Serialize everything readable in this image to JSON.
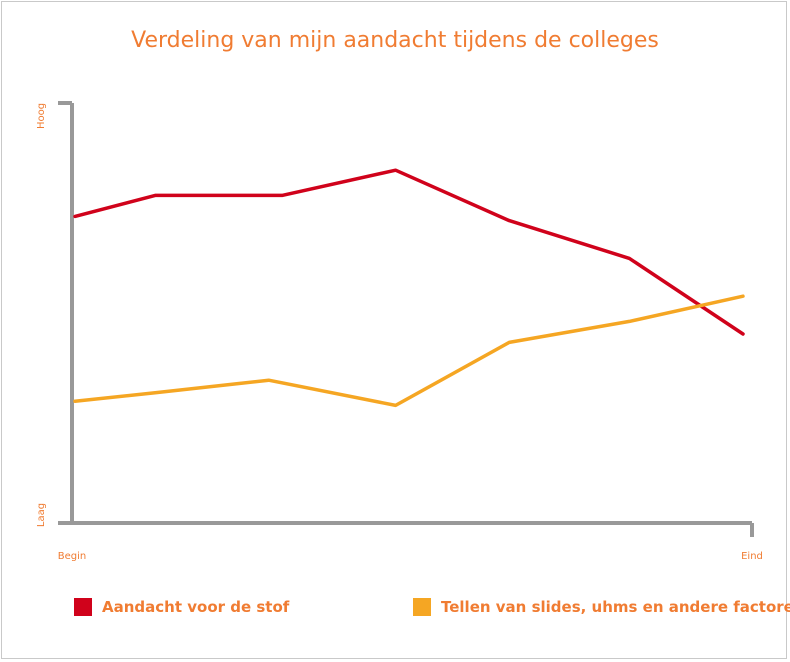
{
  "chart_data": {
    "type": "line",
    "title": "Verdeling van mijn aandacht tijdens de colleges",
    "xlabel": "",
    "ylabel": "",
    "x_tick_labels": [
      "Begin",
      "Eind"
    ],
    "y_tick_labels": [
      "Laag",
      "Hoog"
    ],
    "ylim": [
      0,
      100
    ],
    "grid": false,
    "legend_position": "bottom",
    "series": [
      {
        "name": "Aandacht voor de stof",
        "color": "#d0021b",
        "x": [
          0.0,
          0.12,
          0.31,
          0.48,
          0.65,
          0.83,
          1.0
        ],
        "values": [
          73,
          78,
          78,
          84,
          72,
          63,
          45
        ]
      },
      {
        "name": "Tellen van slides, uhms en andere factoren",
        "color": "#f5a623",
        "x": [
          0.0,
          0.12,
          0.29,
          0.48,
          0.65,
          0.83,
          1.0
        ],
        "values": [
          29,
          31,
          34,
          28,
          43,
          48,
          54
        ]
      }
    ]
  }
}
